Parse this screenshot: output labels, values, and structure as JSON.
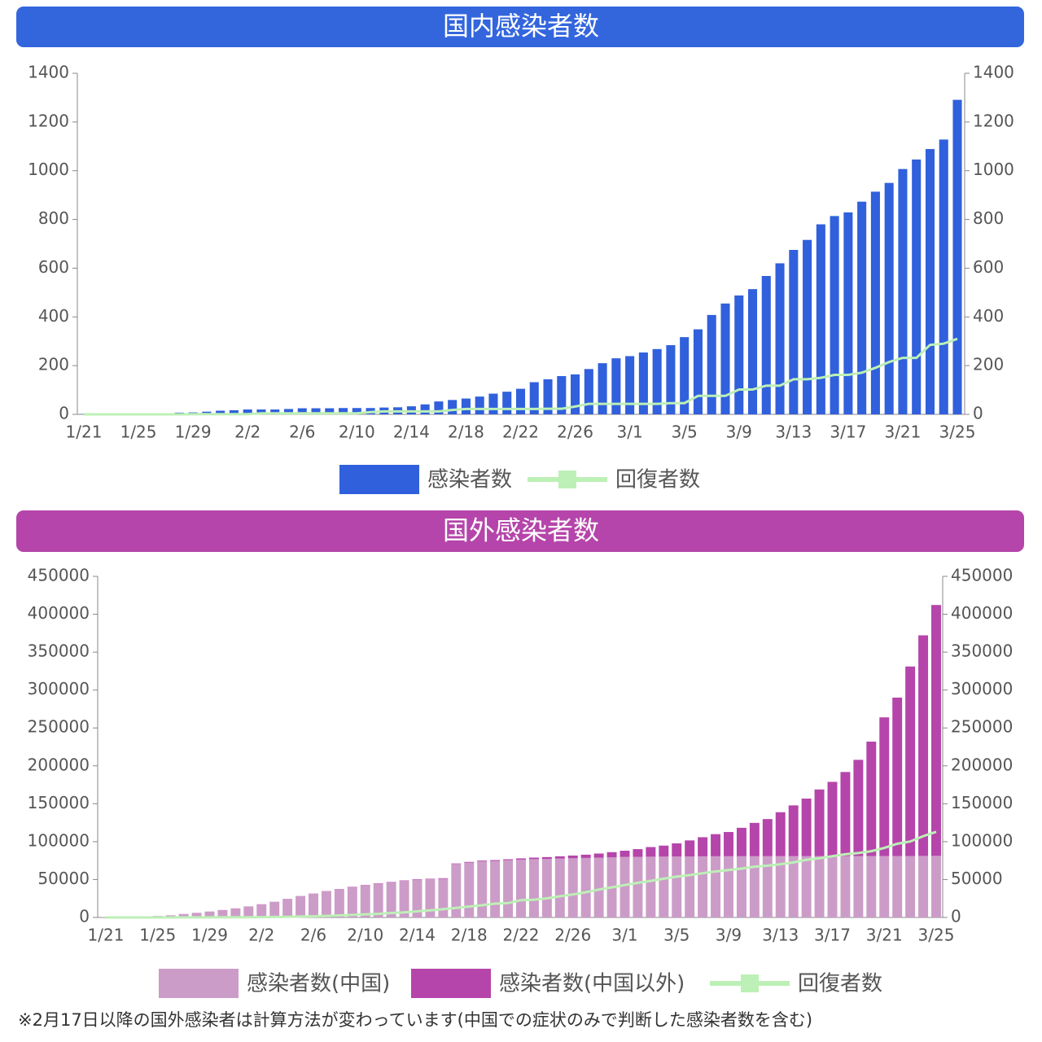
{
  "chart_data": [
    {
      "type": "bar",
      "title": "国内感染者数",
      "title_background": "#3366dd",
      "categories": [
        "1/21",
        null,
        null,
        null,
        "1/25",
        null,
        null,
        null,
        "1/29",
        null,
        null,
        null,
        "2/2",
        null,
        null,
        null,
        "2/6",
        null,
        null,
        null,
        "2/10",
        null,
        null,
        null,
        "2/14",
        null,
        null,
        null,
        "2/18",
        null,
        null,
        null,
        "2/22",
        null,
        null,
        null,
        "2/26",
        null,
        null,
        null,
        "3/1",
        null,
        null,
        null,
        "3/5",
        null,
        null,
        null,
        "3/9",
        null,
        null,
        null,
        "3/13",
        null,
        null,
        null,
        "3/17",
        null,
        null,
        null,
        "3/21",
        null,
        null,
        null,
        "3/25"
      ],
      "series": [
        {
          "name": "感染者数",
          "type": "bar",
          "color": "#3060dc",
          "values": [
            1,
            1,
            1,
            2,
            3,
            4,
            4,
            7,
            8,
            11,
            15,
            17,
            20,
            20,
            20,
            22,
            25,
            25,
            25,
            26,
            26,
            26,
            28,
            29,
            33,
            41,
            53,
            59,
            65,
            73,
            85,
            93,
            105,
            132,
            144,
            157,
            164,
            186,
            210,
            230,
            239,
            254,
            268,
            284,
            317,
            349,
            408,
            455,
            488,
            514,
            568,
            620,
            675,
            716,
            780,
            814,
            829,
            873,
            914,
            950,
            1007,
            1046,
            1089,
            1128,
            1291
          ]
        },
        {
          "name": "回復者数",
          "type": "line",
          "axis": "y2",
          "color": "#bdf0b6",
          "values": [
            0,
            0,
            0,
            0,
            0,
            0,
            0,
            0,
            1,
            1,
            1,
            1,
            1,
            4,
            4,
            4,
            4,
            4,
            4,
            4,
            4,
            9,
            12,
            12,
            12,
            12,
            12,
            18,
            22,
            22,
            22,
            22,
            22,
            22,
            23,
            23,
            32,
            43,
            43,
            43,
            43,
            43,
            43,
            46,
            46,
            76,
            76,
            76,
            102,
            102,
            118,
            118,
            144,
            144,
            150,
            162,
            162,
            171,
            191,
            215,
            232,
            232,
            285,
            290,
            310
          ]
        }
      ],
      "ylim": [
        0,
        1400
      ],
      "yticks": [
        0,
        200,
        400,
        600,
        800,
        1000,
        1200,
        1400
      ],
      "y2lim": [
        0,
        1400
      ],
      "y2ticks": [
        0,
        200,
        400,
        600,
        800,
        1000,
        1200,
        1400
      ],
      "grid": false
    },
    {
      "type": "bar",
      "title": "国外感染者数",
      "title_background": "#b545aa",
      "stacked": true,
      "categories": [
        "1/21",
        null,
        null,
        null,
        "1/25",
        null,
        null,
        null,
        "1/29",
        null,
        null,
        null,
        "2/2",
        null,
        null,
        null,
        "2/6",
        null,
        null,
        null,
        "2/10",
        null,
        null,
        null,
        "2/14",
        null,
        null,
        null,
        "2/18",
        null,
        null,
        null,
        "2/22",
        null,
        null,
        null,
        "2/26",
        null,
        null,
        null,
        "3/1",
        null,
        null,
        null,
        "3/5",
        null,
        null,
        null,
        "3/9",
        null,
        null,
        null,
        "3/13",
        null,
        null,
        null,
        "3/17",
        null,
        null,
        null,
        "3/21",
        null,
        null,
        null,
        "3/25"
      ],
      "series": [
        {
          "name": "感染者数(中国)",
          "type": "bar",
          "color": "#cc9cc8",
          "values": [
            440,
            571,
            830,
            1287,
            1975,
            2744,
            4515,
            5974,
            7711,
            9692,
            11791,
            14380,
            17205,
            20438,
            24324,
            28018,
            31161,
            34546,
            37198,
            40171,
            42638,
            44653,
            46472,
            48467,
            49970,
            50500,
            51091,
            70548,
            72436,
            74185,
            74576,
            75465,
            76288,
            76936,
            77150,
            77658,
            78064,
            78497,
            78824,
            79251,
            79824,
            80026,
            80151,
            80270,
            80409,
            80552,
            80651,
            80695,
            80735,
            80754,
            80778,
            80793,
            80813,
            80824,
            80844,
            80860,
            80881,
            80894,
            80928,
            80967,
            81008,
            81054,
            81093,
            81171,
            81218
          ]
        },
        {
          "name": "感染者数(中国以外)",
          "type": "bar",
          "color": "#b545aa",
          "values": [
            0,
            6,
            10,
            20,
            40,
            50,
            60,
            80,
            100,
            120,
            150,
            170,
            180,
            190,
            200,
            220,
            270,
            290,
            300,
            320,
            350,
            390,
            440,
            450,
            500,
            520,
            680,
            690,
            800,
            900,
            1100,
            1300,
            1600,
            2000,
            2500,
            3000,
            3600,
            4300,
            5500,
            6900,
            8200,
            10100,
            12700,
            14500,
            17300,
            21100,
            25200,
            29200,
            32000,
            37500,
            44000,
            49000,
            58000,
            67000,
            76000,
            88000,
            98000,
            111000,
            127000,
            151000,
            183000,
            209000,
            250000,
            291000,
            331000
          ]
        },
        {
          "name": "回復者数",
          "type": "line",
          "axis": "y2",
          "color": "#bdf0b6",
          "values": [
            0,
            28,
            34,
            38,
            49,
            51,
            60,
            103,
            124,
            171,
            243,
            328,
            475,
            632,
            892,
            1153,
            1540,
            2050,
            2649,
            3281,
            3996,
            4740,
            5911,
            6728,
            8101,
            9419,
            10844,
            12552,
            14376,
            16155,
            18264,
            18937,
            22886,
            23394,
            25227,
            27905,
            30384,
            33277,
            36711,
            39782,
            42716,
            45602,
            48228,
            51170,
            53796,
            55866,
            58358,
            60695,
            62494,
            64404,
            67003,
            68324,
            70251,
            72624,
            76034,
            78088,
            80840,
            83312,
            84962,
            87403,
            91676,
            97243,
            100240,
            107247,
            113000
          ]
        }
      ],
      "ylim": [
        0,
        450000
      ],
      "yticks": [
        0,
        50000,
        100000,
        150000,
        200000,
        250000,
        300000,
        350000,
        400000,
        450000
      ],
      "y2lim": [
        0,
        450000
      ],
      "y2ticks": [
        0,
        50000,
        100000,
        150000,
        200000,
        250000,
        300000,
        350000,
        400000,
        450000
      ],
      "grid": false,
      "footnote": "※2月17日以降の国外感染者は計算方法が変わっています(中国での症状のみで判断した感染者数を含む)"
    }
  ]
}
